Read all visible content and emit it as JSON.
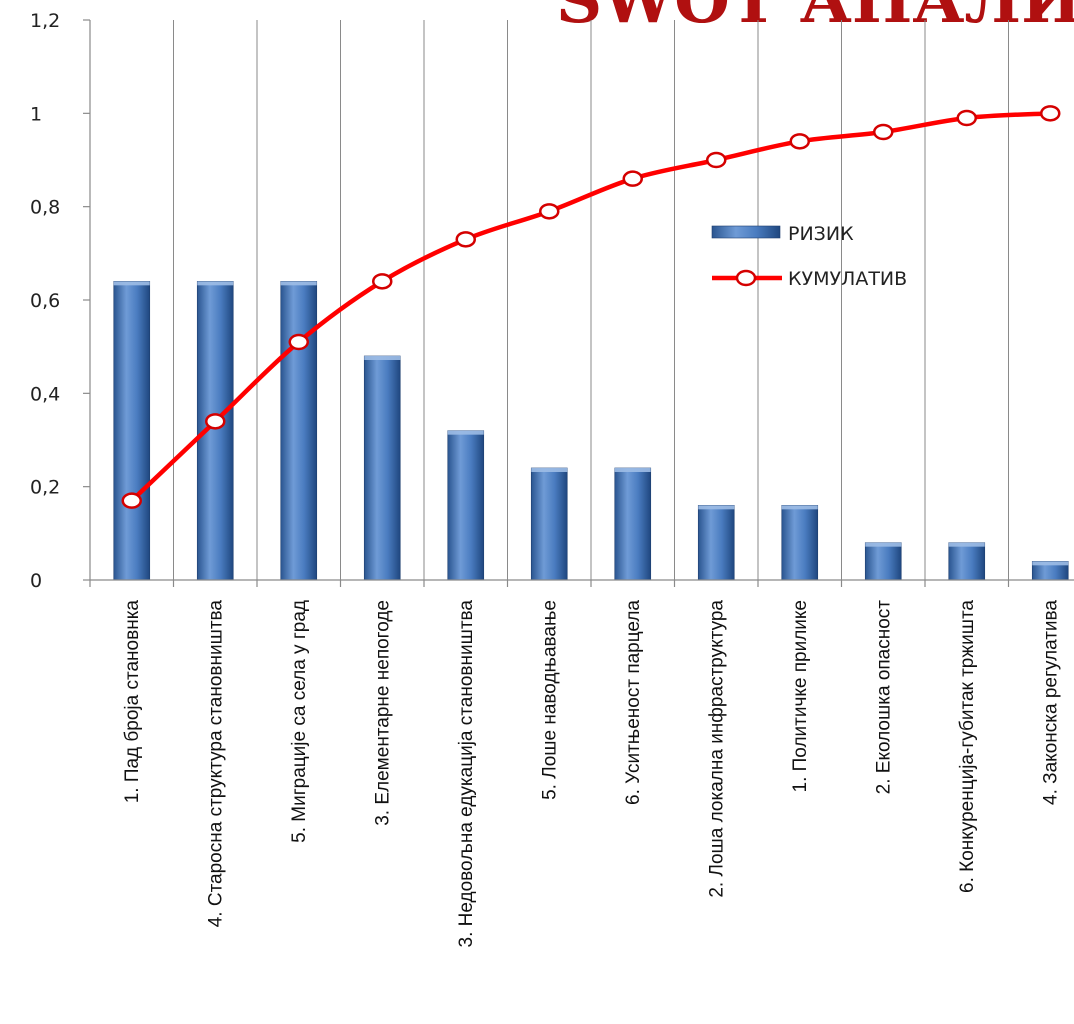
{
  "chart_data": {
    "type": "bar",
    "title": "SWOT АНАЛИЗА",
    "xlabel": "",
    "ylabel": "",
    "ylim": [
      0,
      1.2
    ],
    "yticks": [
      "0",
      "0,2",
      "0,4",
      "0,6",
      "0,8",
      "1",
      "1,2"
    ],
    "grid": {
      "vertical": true,
      "horizontal": false
    },
    "legend_position": "right",
    "categories": [
      "1. Пад броја становнка",
      "4. Старосна структура становништва",
      "5. Миграције са села у град",
      "3. Елементарне непогоде",
      "3. Недовољна едукација становништва",
      "5. Лоше наводњавање",
      "6. Уситњеност парцела",
      "2. Лоша локална инфраструктура",
      "1. Политичке прилике",
      "2. Еколошка опасност",
      "6. Конкуренција-губитак тржишта",
      "4. Законска регулатива"
    ],
    "series": [
      {
        "name": "РИЗИК",
        "type": "bar",
        "color": "#4F81BD",
        "values": [
          0.64,
          0.64,
          0.64,
          0.48,
          0.32,
          0.24,
          0.24,
          0.16,
          0.16,
          0.08,
          0.08,
          0.04
        ]
      },
      {
        "name": "КУМУЛАТИВ",
        "type": "line",
        "color": "#FF0000",
        "values": [
          0.17,
          0.34,
          0.51,
          0.64,
          0.73,
          0.79,
          0.86,
          0.9,
          0.94,
          0.96,
          0.99,
          1.0
        ]
      }
    ]
  }
}
